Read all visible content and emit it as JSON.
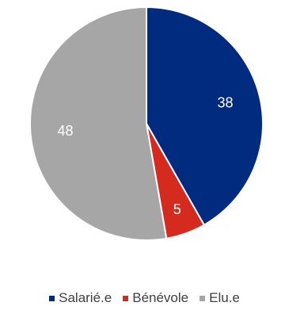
{
  "chart_data": {
    "type": "pie",
    "categories": [
      "Salarié.e",
      "Bénévole",
      "Elu.e"
    ],
    "values": [
      38,
      5,
      48
    ],
    "colors": [
      "#002B7F",
      "#D52B1E",
      "#A6A6A6"
    ],
    "label_colors": [
      "#ffffff",
      "#ffffff",
      "#ffffff"
    ],
    "start_angle_deg": 0,
    "direction": "clockwise",
    "legend_position": "bottom"
  }
}
